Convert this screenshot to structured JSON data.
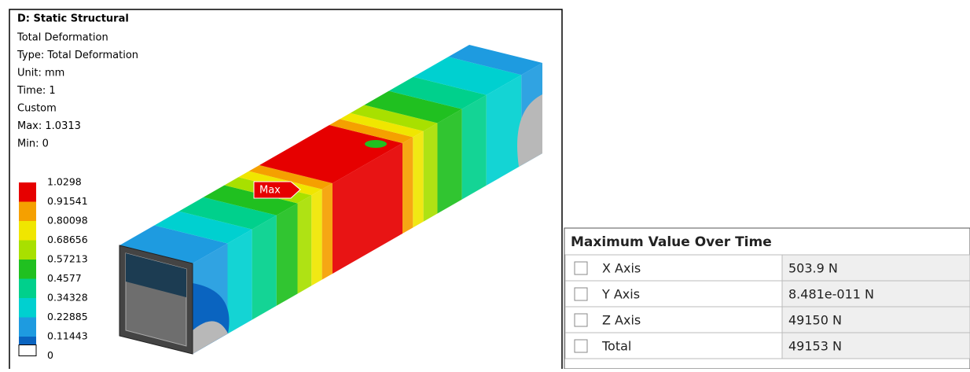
{
  "header": {
    "title": "D: Static Structural",
    "lines": [
      "Total Deformation",
      "Type: Total Deformation",
      "Unit: mm",
      "Time: 1",
      "Custom",
      "Max: 1.0313",
      "Min: 0"
    ]
  },
  "legend": {
    "labels": [
      "1.0298",
      "0.91541",
      "0.80098",
      "0.68656",
      "0.57213",
      "0.4577",
      "0.34328",
      "0.22885",
      "0.11443",
      "0"
    ],
    "colors": [
      "#e60000",
      "#f5a000",
      "#f0e600",
      "#a8e000",
      "#20c020",
      "#00d08c",
      "#00d0d0",
      "#1e9be0",
      "#0a64c0",
      "#ffffff"
    ]
  },
  "probe_label": "Max",
  "table": {
    "title": "Maximum Value Over Time",
    "rows": [
      [
        "X Axis",
        "503.9 N"
      ],
      [
        "Y Axis",
        "8.481e-011 N"
      ],
      [
        "Z Axis",
        "49150 N"
      ],
      [
        "Total",
        "49153 N"
      ]
    ]
  }
}
